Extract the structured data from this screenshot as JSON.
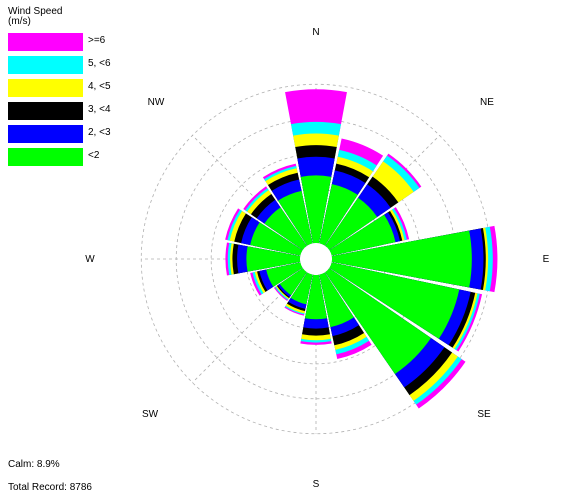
{
  "chart_data": {
    "type": "wind-rose",
    "legend": {
      "title_line1": "Wind Speed",
      "title_line2": "(m/s)",
      "bins": [
        {
          "label": ">=6",
          "color": "#ff00ff"
        },
        {
          "label": "5, <6",
          "color": "#00ffff"
        },
        {
          "label": "4, <5",
          "color": "#ffff00"
        },
        {
          "label": "3, <4",
          "color": "#000000"
        },
        {
          "label": "2, <3",
          "color": "#0000ff"
        },
        {
          "label": "<2",
          "color": "#00ff00"
        }
      ]
    },
    "direction_labels": [
      "N",
      "NE",
      "E",
      "SE",
      "S",
      "SW",
      "W",
      "NW"
    ],
    "grid": true,
    "sectors": [
      {
        "direction": "N",
        "cumulative": [
          2.9,
          3.7,
          4.2,
          4.7,
          5.2,
          6.6
        ]
      },
      {
        "direction": "NNE",
        "cumulative": [
          2.6,
          3.2,
          3.5,
          3.8,
          4.1,
          4.6
        ]
      },
      {
        "direction": "NE",
        "cumulative": [
          2.5,
          3.2,
          3.6,
          4.4,
          4.7,
          4.8
        ]
      },
      {
        "direction": "ENE",
        "cumulative": [
          2.8,
          3.0,
          3.1,
          3.2,
          3.3,
          3.4
        ]
      },
      {
        "direction": "E",
        "cumulative": [
          6.0,
          6.5,
          6.6,
          6.7,
          6.9,
          7.1
        ]
      },
      {
        "direction": "ESE",
        "cumulative": [
          5.6,
          6.1,
          6.3,
          6.4,
          6.5,
          6.6
        ]
      },
      {
        "direction": "SE",
        "cumulative": [
          5.3,
          6.0,
          6.4,
          6.7,
          6.9,
          7.1
        ]
      },
      {
        "direction": "SSE",
        "cumulative": [
          2.3,
          2.7,
          3.1,
          3.3,
          3.5,
          3.7
        ]
      },
      {
        "direction": "S",
        "cumulative": [
          1.9,
          2.3,
          2.6,
          2.8,
          2.9,
          3.0
        ]
      },
      {
        "direction": "SSW",
        "cumulative": [
          1.3,
          1.5,
          1.6,
          1.7,
          1.75,
          1.8
        ]
      },
      {
        "direction": "SW",
        "cumulative": [
          1.2,
          1.3,
          1.35,
          1.4,
          1.45,
          1.5
        ]
      },
      {
        "direction": "WSW",
        "cumulative": [
          1.5,
          1.8,
          1.9,
          2.0,
          2.1,
          2.2
        ]
      },
      {
        "direction": "W",
        "cumulative": [
          2.3,
          2.7,
          2.9,
          3.0,
          3.1,
          3.2
        ]
      },
      {
        "direction": "WNW",
        "cumulative": [
          2.2,
          2.6,
          2.9,
          3.1,
          3.2,
          3.3
        ]
      },
      {
        "direction": "NW",
        "cumulative": [
          2.0,
          2.4,
          2.7,
          2.9,
          3.0,
          3.1
        ]
      },
      {
        "direction": "NNW",
        "cumulative": [
          2.3,
          2.8,
          3.1,
          3.3,
          3.4,
          3.5
        ]
      }
    ],
    "radial_rings": [
      1.5,
      3,
      4.5,
      6,
      7.5
    ]
  },
  "footer": {
    "calm": "Calm: 8.9%",
    "total_record": "Total Record: 8786"
  }
}
